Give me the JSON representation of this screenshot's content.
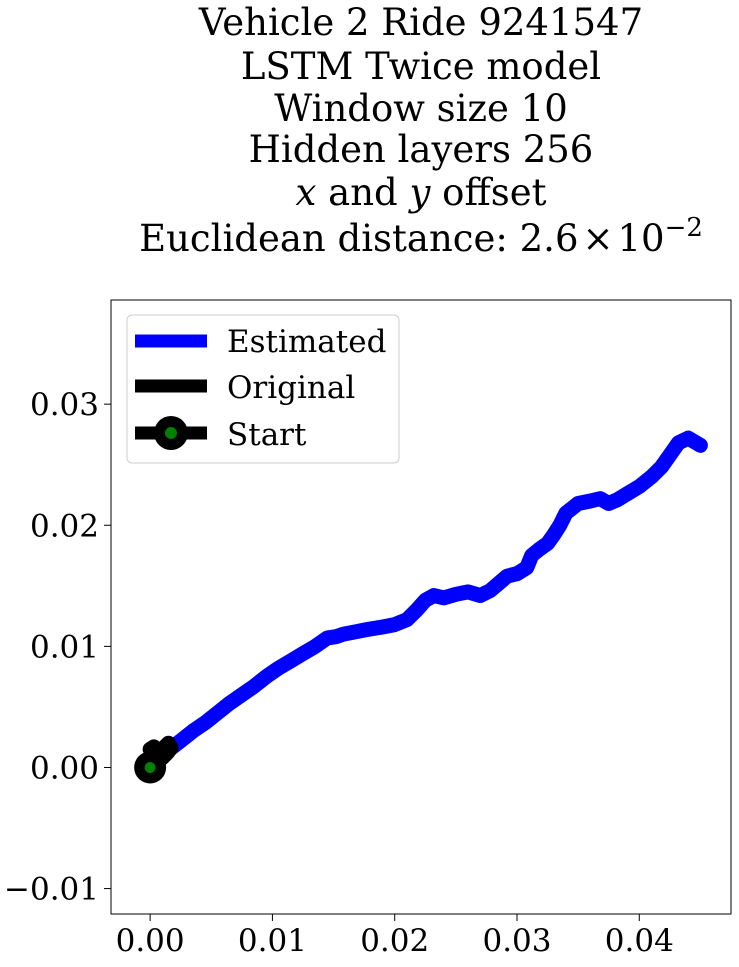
{
  "chart_data": {
    "type": "line",
    "title_lines": [
      "Vehicle 2 Ride 9241547",
      "LSTM Twice model",
      "Window size 10",
      "Hidden layers 256"
    ],
    "title_line_offset": {
      "var_x": "x",
      "middle": " and ",
      "var_y": "y",
      "tail": " offset"
    },
    "title_line_distance": {
      "prefix": "Euclidean distance: ",
      "mantissa": "2.6",
      "times": "×",
      "base": "10",
      "exponent": "−2"
    },
    "xlabel": "",
    "ylabel": "",
    "xlim": [
      -0.0032,
      0.0475
    ],
    "ylim": [
      -0.0121,
      0.0386
    ],
    "x_ticks": [
      0.0,
      0.01,
      0.02,
      0.03,
      0.04
    ],
    "x_tick_labels": [
      "0.00",
      "0.01",
      "0.02",
      "0.03",
      "0.04"
    ],
    "y_ticks": [
      -0.01,
      0.0,
      0.01,
      0.02,
      0.03
    ],
    "y_tick_labels": [
      "−0.01",
      "0.00",
      "0.01",
      "0.02",
      "0.03"
    ],
    "grid": false,
    "legend_position": "top-left",
    "legend": [
      "Estimated",
      "Original",
      "Start"
    ],
    "series": [
      {
        "name": "Estimated",
        "color": "#0000ff",
        "x": [
          0.0,
          0.0008,
          0.0016,
          0.0025,
          0.0035,
          0.0045,
          0.0055,
          0.0065,
          0.0075,
          0.0085,
          0.0095,
          0.0105,
          0.0115,
          0.0125,
          0.0135,
          0.0145,
          0.0152,
          0.0158,
          0.0168,
          0.0178,
          0.019,
          0.02,
          0.021,
          0.0218,
          0.0225,
          0.0232,
          0.024,
          0.025,
          0.026,
          0.027,
          0.0278,
          0.0285,
          0.0292,
          0.03,
          0.0308,
          0.0312,
          0.0318,
          0.0325,
          0.033,
          0.0335,
          0.034,
          0.035,
          0.036,
          0.0368,
          0.0375,
          0.0382,
          0.039,
          0.04,
          0.041,
          0.0418,
          0.0425,
          0.0432,
          0.044,
          0.045
        ],
        "y": [
          0.0,
          0.0008,
          0.0015,
          0.0022,
          0.003,
          0.0037,
          0.0045,
          0.0053,
          0.006,
          0.0067,
          0.0075,
          0.0082,
          0.0088,
          0.0094,
          0.01,
          0.0107,
          0.0108,
          0.011,
          0.0112,
          0.0114,
          0.0116,
          0.0118,
          0.0122,
          0.013,
          0.0138,
          0.0142,
          0.014,
          0.0143,
          0.0145,
          0.0142,
          0.0146,
          0.0152,
          0.0158,
          0.016,
          0.0165,
          0.0175,
          0.018,
          0.0185,
          0.0192,
          0.02,
          0.021,
          0.0218,
          0.022,
          0.0222,
          0.0218,
          0.0221,
          0.0226,
          0.0232,
          0.024,
          0.0248,
          0.0258,
          0.0268,
          0.0272,
          0.0266
        ]
      },
      {
        "name": "Original",
        "color": "#000000",
        "x": [
          0.0,
          0.0003,
          0.0006,
          0.0009,
          0.0012,
          0.0014,
          0.0016,
          0.0013,
          0.001,
          0.0008,
          0.0012,
          0.0015,
          0.0017,
          0.0014,
          0.001,
          0.0006,
          0.0003,
          0.0
        ],
        "y": [
          0.0,
          0.0005,
          0.0009,
          0.0013,
          0.0016,
          0.0019,
          0.0015,
          0.0011,
          0.0008,
          0.0012,
          0.0017,
          0.002,
          0.0016,
          0.0012,
          0.001,
          0.0014,
          0.0017,
          0.0015
        ]
      }
    ],
    "start_point": {
      "label": "Start",
      "x": 0.0,
      "y": 0.0,
      "face_color": "#008000",
      "edge_color": "#000000"
    }
  }
}
